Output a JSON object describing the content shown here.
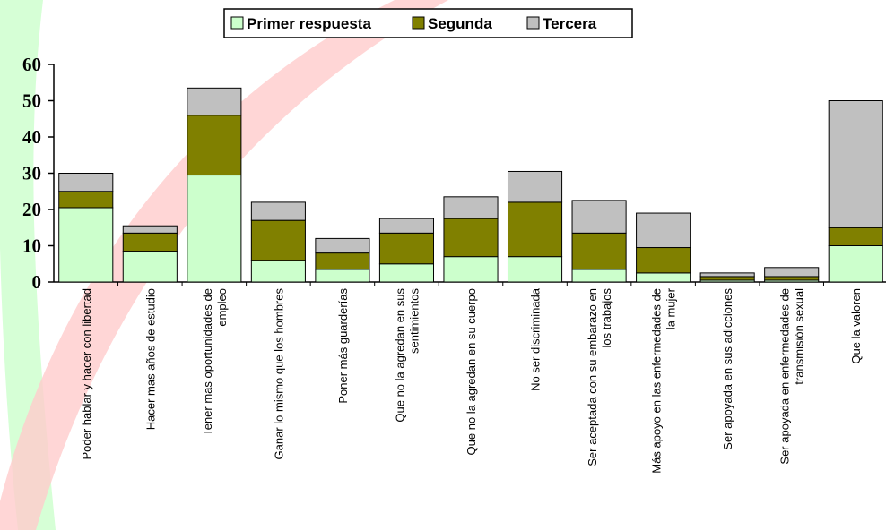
{
  "chart_data": {
    "type": "stacked-bar",
    "categories": [
      "Poder hablar y hacer con libertad",
      "Hacer mas años de estudio",
      "Tener mas oportunidades de\nempleo",
      "Ganar lo mismo que los hombres",
      "Poner más guarderías",
      "Que no la agredan en sus\nsentimientos",
      "Que no la agredan en su cuerpo",
      "No ser discriminada",
      "Ser aceptada con su embarazo en\nlos trabajos",
      "Más apoyo en las enfermedades de\nla mujer",
      "Ser apoyada en sus adicciones",
      "Ser apoyada en enfermedades de\ntransmisión sexual",
      "Que la valoren"
    ],
    "series": [
      {
        "name": "Primer respuesta",
        "color": "#ccffcc",
        "values": [
          20.5,
          8.5,
          29.5,
          6,
          3.5,
          5,
          7,
          7,
          3.5,
          2.5,
          0.5,
          0.5,
          10
        ]
      },
      {
        "name": "Segunda",
        "color": "#808000",
        "values": [
          4.5,
          5,
          16.5,
          11,
          4.5,
          8.5,
          10.5,
          15,
          10,
          7,
          1,
          1,
          5
        ]
      },
      {
        "name": "Tercera",
        "color": "#c0c0c0",
        "values": [
          5,
          2,
          7.5,
          5,
          4,
          4,
          6,
          8.5,
          9,
          9.5,
          1,
          2.5,
          35
        ]
      }
    ],
    "ylim": [
      0,
      60
    ],
    "yticks": [
      0,
      10,
      20,
      30,
      40,
      50,
      60
    ],
    "legend": "top"
  }
}
